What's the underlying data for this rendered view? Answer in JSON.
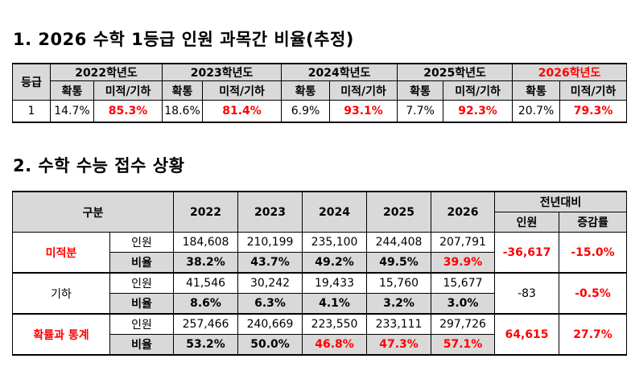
{
  "title1": "1. 2026 수학 1등급 인원 과목간 비율(추정)",
  "t1": {
    "grade_header": "등급",
    "years": [
      "2022학년도",
      "2023학년도",
      "2024학년도",
      "2025학년도",
      "2026학년도"
    ],
    "sub": [
      "확통",
      "미적/기하"
    ],
    "row": {
      "grade": "1",
      "values": [
        [
          "14.7%",
          "85.3%"
        ],
        [
          "18.6%",
          "81.4%"
        ],
        [
          "6.9%",
          "93.1%"
        ],
        [
          "7.7%",
          "92.3%"
        ],
        [
          "20.7%",
          "79.3%"
        ]
      ]
    }
  },
  "title2": "2. 수학 수능 접수 상황",
  "t2": {
    "category_header": "구분",
    "years": [
      "2022",
      "2023",
      "2024",
      "2025",
      "2026"
    ],
    "yoy_header": "전년대비",
    "yoy_sub": [
      "인원",
      "증감률"
    ],
    "groups": [
      {
        "name": "미적분",
        "count_label": "인원",
        "ratio_label": "비율",
        "counts": [
          "184,608",
          "210,199",
          "235,100",
          "244,408",
          "207,791"
        ],
        "ratios": [
          "38.2%",
          "43.7%",
          "49.2%",
          "49.5%",
          "39.9%"
        ],
        "yoy_count": "-36,617",
        "yoy_rate": "-15.0%"
      },
      {
        "name": "기하",
        "count_label": "인원",
        "ratio_label": "비율",
        "counts": [
          "41,546",
          "30,242",
          "19,433",
          "15,760",
          "15,677"
        ],
        "ratios": [
          "8.6%",
          "6.3%",
          "4.1%",
          "3.2%",
          "3.0%"
        ],
        "yoy_count": "-83",
        "yoy_rate": "-0.5%"
      },
      {
        "name": "확률과 통계",
        "count_label": "인원",
        "ratio_label": "비율",
        "counts": [
          "257,466",
          "240,669",
          "223,550",
          "233,111",
          "297,726"
        ],
        "ratios": [
          "53.2%",
          "50.0%",
          "46.8%",
          "47.3%",
          "57.1%"
        ],
        "yoy_count": "64,615",
        "yoy_rate": "27.7%"
      }
    ]
  }
}
